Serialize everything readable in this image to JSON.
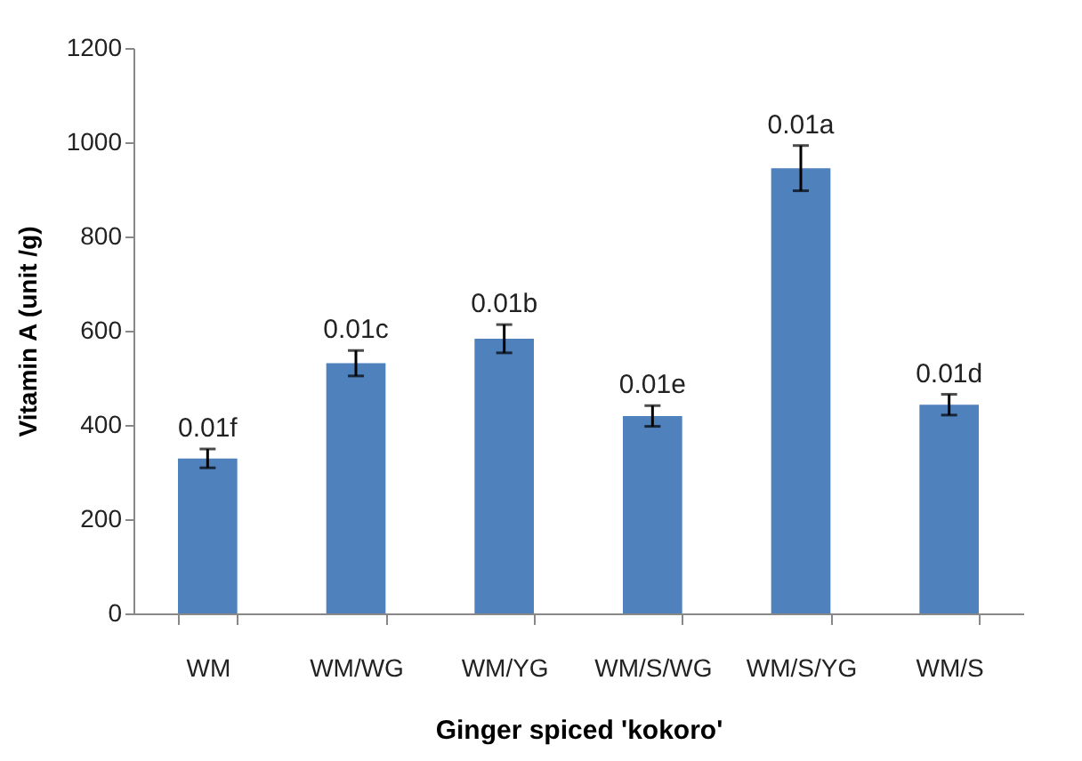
{
  "chart_data": {
    "type": "bar",
    "xlabel": "Ginger spiced 'kokoro'",
    "ylabel": "Vitamin A (unit /g)",
    "categories": [
      "WM",
      "WM/WG",
      "WM/YG",
      "WM/S/WG",
      "WM/S/YG",
      "WM/S"
    ],
    "values": [
      329,
      531,
      583,
      419,
      945,
      443
    ],
    "errors": [
      20,
      27,
      30,
      22,
      48,
      22
    ],
    "color": "#4f81bd",
    "ylim": [
      0,
      1200
    ],
    "yticks": [
      0,
      200,
      400,
      600,
      800,
      1000,
      1200
    ],
    "grid": false,
    "annotations": [
      {
        "text": "0.01f",
        "x": "WM",
        "y": 349
      },
      {
        "text": "0.01c",
        "x": "WM/WG",
        "y": 558
      },
      {
        "text": "0.01b",
        "x": "WM/YG",
        "y": 613
      },
      {
        "text": "0.01e",
        "x": "WM/S/WG",
        "y": 441
      },
      {
        "text": "0.01a",
        "x": "WM/S/YG",
        "y": 993
      },
      {
        "text": "0.01d",
        "x": "WM/S",
        "y": 465
      }
    ]
  }
}
